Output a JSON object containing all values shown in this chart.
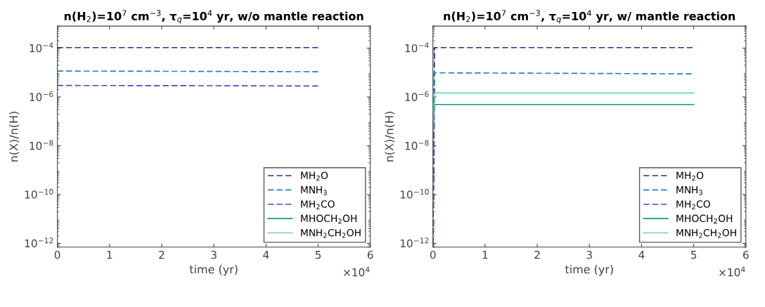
{
  "chart_data": [
    {
      "type": "line",
      "title": "n(H$_{2}$)=10$^{7}$ cm$^{−3}$, τ$_{q}$=10$^{4}$ yr, w/o mantle reaction",
      "xlabel": "time (yr)",
      "ylabel": "n(X)/n(H)",
      "log": "y",
      "grid": false,
      "legend": "bottom right",
      "xlim": [
        0,
        6
      ],
      "xticks": [
        0,
        1,
        2,
        3,
        4,
        5,
        6
      ],
      "ylim": [
        7e-13,
        0.0008
      ],
      "yticks": [
        {
          "value": 1e-12,
          "label": "10$^{−12}$"
        },
        {
          "value": 1e-10,
          "label": "10$^{−10}$"
        },
        {
          "value": 1e-08,
          "label": "10$^{−8}$"
        },
        {
          "value": 1e-06,
          "label": "10$^{−6}$"
        },
        {
          "value": 0.0001,
          "label": "10$^{−4}$"
        }
      ],
      "annotations": [
        "×10$^{4}$"
      ],
      "series": [
        {
          "name": "MH$_{2}$O",
          "color": "#22347f",
          "line_style": "dashed",
          "x": [
            0,
            2.5,
            5
          ],
          "values": [
            0.000105,
            0.000105,
            0.000105
          ]
        },
        {
          "name": "MNH$_{3}$",
          "color": "#1f7fc8",
          "line_style": "dashed",
          "x": [
            0,
            2.5,
            5
          ],
          "values": [
            1.15e-05,
            1.12e-05,
            1.08e-05
          ]
        },
        {
          "name": "MH$_{2}$CO",
          "color": "#3a52b5",
          "line_style": "dashed",
          "x": [
            0,
            2.5,
            5
          ],
          "values": [
            2.95e-06,
            2.9e-06,
            2.8e-06
          ]
        },
        {
          "name": "MHOCH$_{2}$OH",
          "color": "#0f9e80",
          "line_style": "solid"
        },
        {
          "name": "MNH$_{2}$CH$_{2}$OH",
          "color": "#6dd4b8",
          "line_style": "solid"
        }
      ]
    },
    {
      "type": "line",
      "title": "n(H$_{2}$)=10$^{7}$ cm$^{−3}$, τ$_{q}$=10$^{4}$ yr, w/ mantle reaction",
      "xlabel": "time (yr)",
      "ylabel": "n(X)/n(H)",
      "log": "y",
      "grid": false,
      "legend": "bottom right",
      "xlim": [
        0,
        6
      ],
      "xticks": [
        0,
        1,
        2,
        3,
        4,
        5,
        6
      ],
      "ylim": [
        7e-13,
        0.0008
      ],
      "yticks": [
        {
          "value": 1e-12,
          "label": "10$^{−12}$"
        },
        {
          "value": 1e-10,
          "label": "10$^{−10}$"
        },
        {
          "value": 1e-08,
          "label": "10$^{−8}$"
        },
        {
          "value": 1e-06,
          "label": "10$^{−6}$"
        },
        {
          "value": 0.0001,
          "label": "10$^{−4}$"
        }
      ],
      "annotations": [
        "×10$^{4}$"
      ],
      "series": [
        {
          "name": "MH$_{2}$O",
          "color": "#22347f",
          "line_style": "dashed",
          "x": [
            0,
            0.03,
            2.5,
            5
          ],
          "values": [
            1e-12,
            0.000105,
            0.000105,
            0.000105
          ]
        },
        {
          "name": "MNH$_{3}$",
          "color": "#1f7fc8",
          "line_style": "dashed",
          "x": [
            0,
            0.03,
            2.5,
            5
          ],
          "values": [
            1e-12,
            9.7e-06,
            9.3e-06,
            8.8e-06
          ]
        },
        {
          "name": "MH$_{2}$CO",
          "color": "#3a52b5",
          "line_style": "dashed",
          "x": [
            0,
            0.03
          ],
          "values": [
            1e-12,
            2e-06
          ]
        },
        {
          "name": "MHOCH$_{2}$OH",
          "color": "#0f9e80",
          "line_style": "solid",
          "x": [
            0,
            0.03,
            2.5,
            5
          ],
          "values": [
            4e-08,
            4.9e-07,
            4.9e-07,
            4.9e-07
          ]
        },
        {
          "name": "MNH$_{2}$CH$_{2}$OH",
          "color": "#6dd4b8",
          "line_style": "solid",
          "x": [
            0,
            0.03,
            2.5,
            5
          ],
          "values": [
            4e-08,
            1.45e-06,
            1.45e-06,
            1.45e-06
          ]
        }
      ]
    }
  ]
}
